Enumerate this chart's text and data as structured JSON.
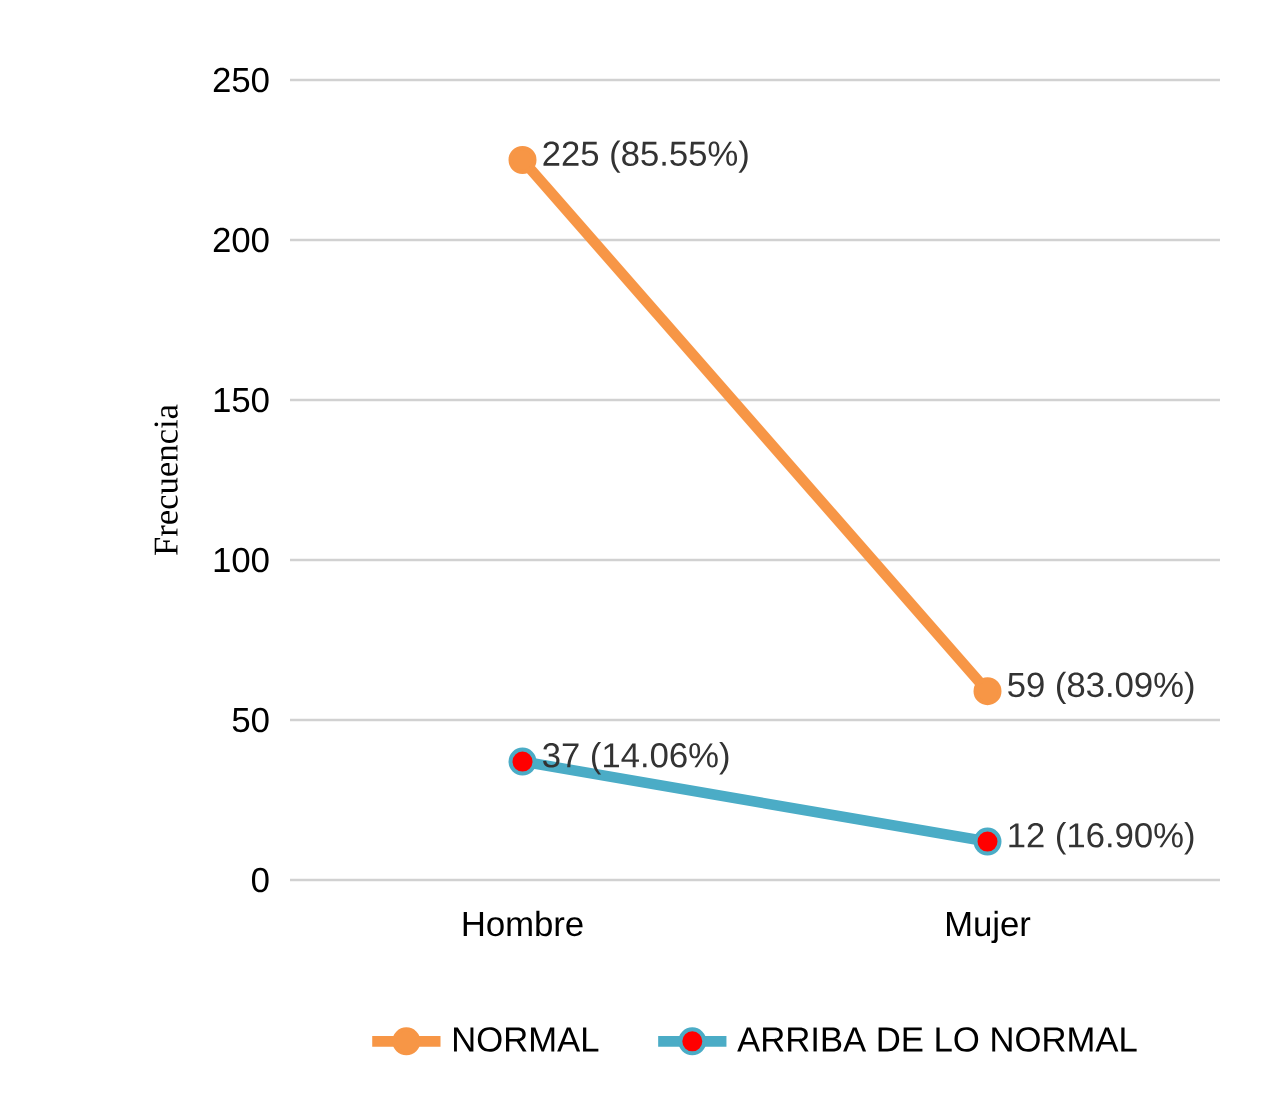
{
  "chart_data": {
    "type": "line",
    "ylabel": "Frecuencia",
    "categories": [
      "Hombre",
      "Mujer"
    ],
    "series": [
      {
        "name": "NORMAL",
        "color": "#f79646",
        "colors": [
          "#f79646",
          "#f79646"
        ],
        "values": [
          225,
          59
        ],
        "value_labels": [
          "225 (85.55%)",
          "59 (83.09%)"
        ]
      },
      {
        "name": "ARRIBA DE LO NORMAL",
        "color": "#4bacc6",
        "colors": [
          "#ff0000",
          "#ff0000"
        ],
        "values": [
          37,
          12
        ],
        "value_labels": [
          "37 (14.06%)",
          "12 (16.90%)"
        ]
      }
    ],
    "ylim": [
      0,
      250
    ],
    "yticks": [
      0,
      50,
      100,
      150,
      200,
      250
    ],
    "grid": "y",
    "legend": "bottom",
    "marker": "circle",
    "line_style": "solid"
  }
}
